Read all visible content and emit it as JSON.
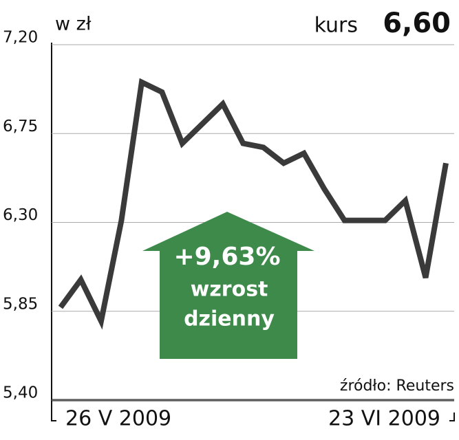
{
  "chart_data": {
    "type": "line",
    "unit_label": "w zł",
    "price_label": "kurs",
    "price_value": "6,60",
    "annotations": [
      "+9,63%",
      "wzrost",
      "dzienny"
    ],
    "source": "źródło: Reuters",
    "categories": [
      "26 V 2009",
      null,
      null,
      null,
      null,
      null,
      null,
      null,
      null,
      null,
      null,
      null,
      null,
      null,
      null,
      null,
      null,
      null,
      null,
      "23 VI 2009"
    ],
    "series": [
      {
        "color": "#3a3a3a",
        "values": [
          5.87,
          6.01,
          5.8,
          6.31,
          7.01,
          6.96,
          6.7,
          6.8,
          6.9,
          6.7,
          6.68,
          6.6,
          6.65,
          6.47,
          6.31,
          6.31,
          6.31,
          6.41,
          6.02,
          6.6
        ]
      }
    ],
    "ylim": [
      5.4,
      7.2
    ],
    "yticks": [
      {
        "value": 5.4,
        "label": "5,40"
      },
      {
        "value": 5.85,
        "label": "5,85"
      },
      {
        "value": 6.3,
        "label": "6,30"
      },
      {
        "value": 6.75,
        "label": "6,75"
      },
      {
        "value": 7.2,
        "label": "7,20"
      }
    ],
    "grid": true,
    "arrow_color": "#3d8a4a"
  }
}
